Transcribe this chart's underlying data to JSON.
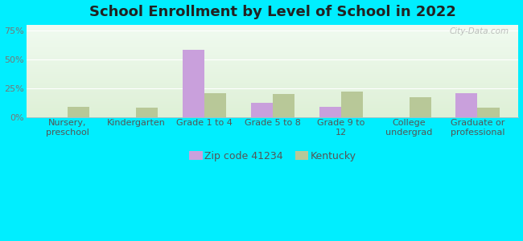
{
  "title": "School Enrollment by Level of School in 2022",
  "categories": [
    "Nursery,\npreschool",
    "Kindergarten",
    "Grade 1 to 4",
    "Grade 5 to 8",
    "Grade 9 to\n12",
    "College\nundergrad",
    "Graduate or\nprofessional"
  ],
  "zip_values": [
    0,
    0,
    58,
    12,
    9,
    0,
    21
  ],
  "ky_values": [
    9,
    8,
    21,
    20,
    22,
    17,
    8
  ],
  "zip_color": "#c9a0dc",
  "ky_color": "#b8c898",
  "zip_label": "Zip code 41234",
  "ky_label": "Kentucky",
  "yticks": [
    0,
    25,
    50,
    75
  ],
  "ytick_labels": [
    "0%",
    "25%",
    "50%",
    "75%"
  ],
  "ylim": [
    0,
    80
  ],
  "bg_outer": "#00eeff",
  "title_fontsize": 13,
  "tick_fontsize": 8,
  "legend_fontsize": 9,
  "bar_width": 0.32,
  "watermark": "City-Data.com"
}
